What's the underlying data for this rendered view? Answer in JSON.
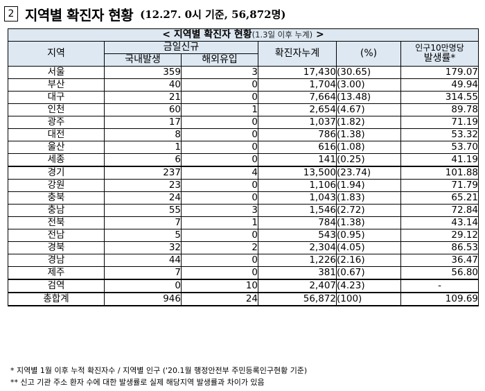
{
  "heading": {
    "number": "2",
    "title": "지역별 확진자 현황",
    "subtitle": "(12.27. 0시 기준, 56,872명)"
  },
  "table": {
    "caption_prefix": "< ",
    "caption_main": "지역별 확진자 현황",
    "caption_note": "(1.3일 이후 누계)",
    "caption_suffix": " >",
    "headers": {
      "region": "지역",
      "today_new": "금일신규",
      "domestic": "국내발생",
      "overseas": "해외유입",
      "cumulative": "확진자누계",
      "percent": "(%)",
      "rate_line1": "인구10만명당",
      "rate_line2": "발생률*"
    },
    "rows": [
      {
        "region": "서울",
        "domestic": "359",
        "overseas": "3",
        "cumulative": "17,430",
        "percent": "(30.65)",
        "rate": "179.07"
      },
      {
        "region": "부산",
        "domestic": "40",
        "overseas": "0",
        "cumulative": "1,704",
        "percent": "(3.00)",
        "rate": "49.94"
      },
      {
        "region": "대구",
        "domestic": "21",
        "overseas": "0",
        "cumulative": "7,664",
        "percent": "(13.48)",
        "rate": "314.55"
      },
      {
        "region": "인천",
        "domestic": "60",
        "overseas": "1",
        "cumulative": "2,654",
        "percent": "(4.67)",
        "rate": "89.78"
      },
      {
        "region": "광주",
        "domestic": "17",
        "overseas": "0",
        "cumulative": "1,037",
        "percent": "(1.82)",
        "rate": "71.19"
      },
      {
        "region": "대전",
        "domestic": "8",
        "overseas": "0",
        "cumulative": "786",
        "percent": "(1.38)",
        "rate": "53.32"
      },
      {
        "region": "울산",
        "domestic": "1",
        "overseas": "0",
        "cumulative": "616",
        "percent": "(1.08)",
        "rate": "53.70"
      },
      {
        "region": "세종",
        "domestic": "6",
        "overseas": "0",
        "cumulative": "141",
        "percent": "(0.25)",
        "rate": "41.19"
      },
      {
        "region": "경기",
        "domestic": "237",
        "overseas": "4",
        "cumulative": "13,500",
        "percent": "(23.74)",
        "rate": "101.88"
      },
      {
        "region": "강원",
        "domestic": "23",
        "overseas": "0",
        "cumulative": "1,106",
        "percent": "(1.94)",
        "rate": "71.79"
      },
      {
        "region": "충북",
        "domestic": "24",
        "overseas": "0",
        "cumulative": "1,043",
        "percent": "(1.83)",
        "rate": "65.21"
      },
      {
        "region": "충남",
        "domestic": "55",
        "overseas": "3",
        "cumulative": "1,546",
        "percent": "(2.72)",
        "rate": "72.84"
      },
      {
        "region": "전북",
        "domestic": "7",
        "overseas": "1",
        "cumulative": "784",
        "percent": "(1.38)",
        "rate": "43.14"
      },
      {
        "region": "전남",
        "domestic": "5",
        "overseas": "0",
        "cumulative": "543",
        "percent": "(0.95)",
        "rate": "29.12"
      },
      {
        "region": "경북",
        "domestic": "32",
        "overseas": "2",
        "cumulative": "2,304",
        "percent": "(4.05)",
        "rate": "86.53"
      },
      {
        "region": "경남",
        "domestic": "44",
        "overseas": "0",
        "cumulative": "1,226",
        "percent": "(2.16)",
        "rate": "36.47"
      },
      {
        "region": "제주",
        "domestic": "7",
        "overseas": "0",
        "cumulative": "381",
        "percent": "(0.67)",
        "rate": "56.80"
      },
      {
        "region": "검역",
        "domestic": "0",
        "overseas": "10",
        "cumulative": "2,407",
        "percent": "(4.23)",
        "rate": "-"
      }
    ],
    "total": {
      "region": "총합계",
      "domestic": "946",
      "overseas": "24",
      "cumulative": "56,872",
      "percent": "(100)",
      "rate": "109.69"
    }
  },
  "notes": [
    "* 지역별 1월 이후 누적 확진자수 / 지역별 인구 ('20.1월 행정안전부 주민등록인구현황 기준)",
    "** 신고 기관 주소 환자 수에 대한 발생률로 실제 해당지역 발생률과 차이가 있음"
  ],
  "colors": {
    "header_bg": "#dde8f2"
  }
}
